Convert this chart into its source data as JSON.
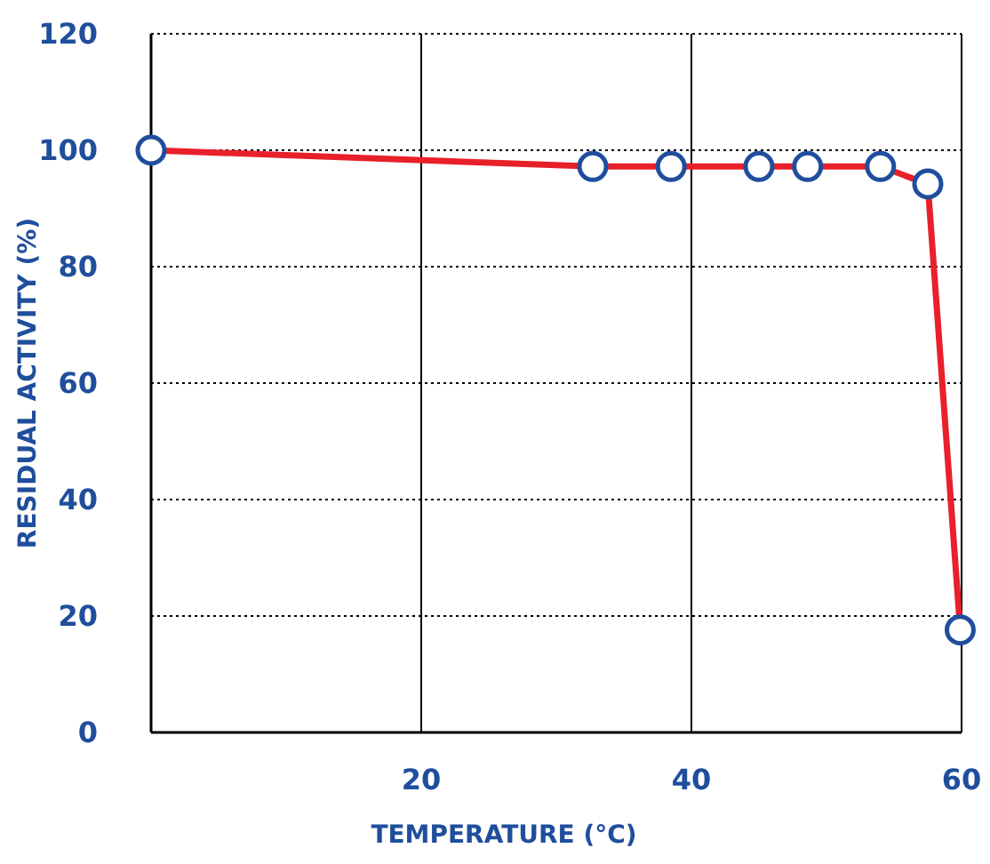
{
  "chart_data": {
    "type": "line",
    "xlabel": "TEMPERATURE (°C)",
    "ylabel": "RESIDUAL ACTIVITY (%)",
    "x": [
      0,
      32.7,
      38.5,
      45,
      48.6,
      54,
      57.5,
      59.9
    ],
    "series": [
      {
        "color": "#e8202a",
        "values": [
          100,
          97.2,
          97.2,
          97.2,
          97.2,
          97.2,
          94.2,
          17.6
        ]
      }
    ],
    "xlim": [
      0,
      60
    ],
    "xticks": [
      {
        "value": 0,
        "label": null
      },
      20,
      40,
      60
    ],
    "ylim": [
      0,
      120
    ],
    "yticks": [
      0,
      20,
      40,
      60,
      80,
      100,
      120
    ],
    "grid": true,
    "marker": "circle",
    "line_style": "solid"
  }
}
